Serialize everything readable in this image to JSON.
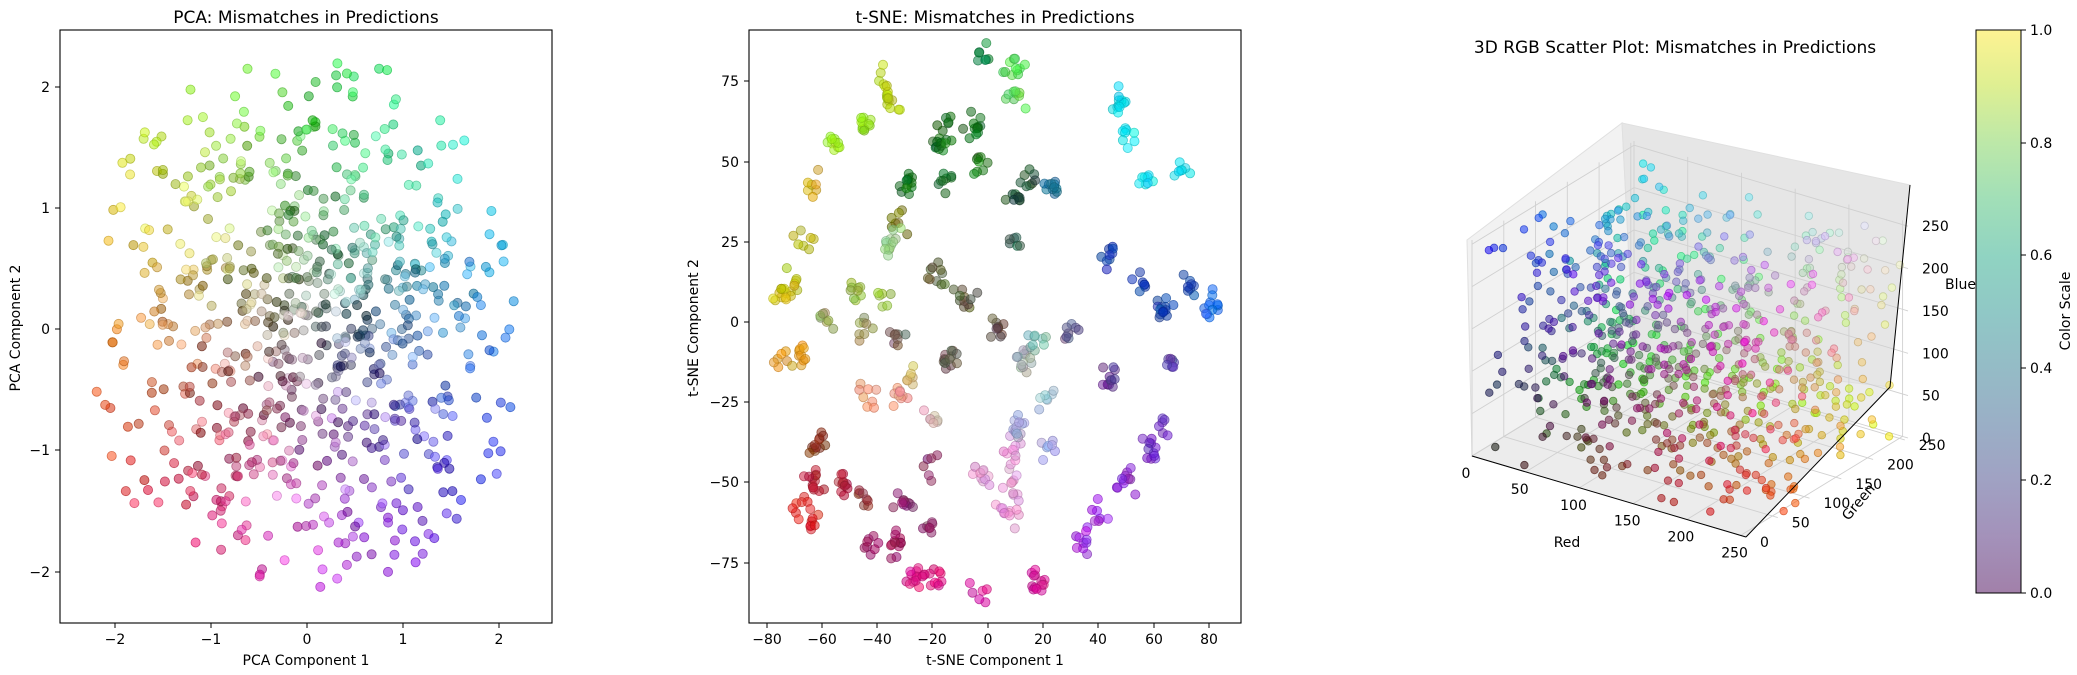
{
  "chart_data": [
    {
      "type": "scatter",
      "title": "PCA: Mismatches in Predictions",
      "xlabel": "PCA Component 1",
      "ylabel": "PCA Component 2",
      "xlim": [
        -2.55,
        2.55
      ],
      "ylim": [
        -2.45,
        2.45
      ],
      "xticks": [
        -2,
        -1,
        0,
        1,
        2
      ],
      "yticks": [
        -2,
        -1,
        0,
        1,
        2
      ],
      "xtick_labels": [
        "−2",
        "−1",
        "0",
        "1",
        "2"
      ],
      "ytick_labels": [
        "−2",
        "−1",
        "0",
        "1",
        "2"
      ],
      "n_points": 780,
      "seed": 11,
      "grid": false
    },
    {
      "type": "scatter",
      "title": "t-SNE: Mismatches in Predictions",
      "xlabel": "t-SNE Component 1",
      "ylabel": "t-SNE Component 2",
      "xlim": [
        -86,
        90
      ],
      "ylim": [
        -93,
        92
      ],
      "xticks": [
        -80,
        -60,
        -40,
        -20,
        0,
        20,
        40,
        60,
        80
      ],
      "yticks": [
        -75,
        -50,
        -25,
        0,
        25,
        50,
        75
      ],
      "xtick_labels": [
        "−80",
        "−60",
        "−40",
        "−20",
        "0",
        "20",
        "40",
        "60",
        "80"
      ],
      "ytick_labels": [
        "−75",
        "−50",
        "−25",
        "0",
        "25",
        "50",
        "75"
      ],
      "clusters": [
        [
          -2,
          83,
          0.0,
          0.5,
          0.25
        ],
        [
          9,
          80,
          0.3,
          0.85,
          0.3
        ],
        [
          9,
          72,
          0.3,
          0.85,
          0.3
        ],
        [
          -38,
          75,
          0.75,
          0.85,
          0.05
        ],
        [
          -35,
          70,
          0.75,
          0.85,
          0.05
        ],
        [
          -56,
          56,
          0.6,
          0.95,
          0.1
        ],
        [
          -45,
          62,
          0.6,
          0.95,
          0.1
        ],
        [
          -15,
          62,
          0.05,
          0.45,
          0.1
        ],
        [
          -18,
          56,
          0.05,
          0.45,
          0.1
        ],
        [
          -5,
          62,
          0.05,
          0.45,
          0.1
        ],
        [
          47,
          70,
          0.0,
          0.9,
          0.95
        ],
        [
          50,
          60,
          0.0,
          0.9,
          0.95
        ],
        [
          56,
          44,
          0.0,
          0.9,
          0.95
        ],
        [
          68,
          48,
          0.0,
          0.9,
          0.95
        ],
        [
          -3,
          50,
          0.05,
          0.45,
          0.1
        ],
        [
          -15,
          45,
          0.05,
          0.45,
          0.1
        ],
        [
          -30,
          45,
          0.05,
          0.45,
          0.1
        ],
        [
          9,
          38,
          0.1,
          0.3,
          0.2
        ],
        [
          13,
          45,
          0.1,
          0.3,
          0.2
        ],
        [
          22,
          43,
          0.05,
          0.45,
          0.6
        ],
        [
          -33,
          33,
          0.45,
          0.45,
          0.05
        ],
        [
          -63,
          42,
          0.85,
          0.65,
          0.05
        ],
        [
          -67,
          26,
          0.75,
          0.75,
          0.05
        ],
        [
          -35,
          25,
          0.6,
          0.8,
          0.5
        ],
        [
          -70,
          14,
          0.75,
          0.75,
          0.05
        ],
        [
          -48,
          10,
          0.6,
          0.75,
          0.2
        ],
        [
          -38,
          9,
          0.6,
          0.75,
          0.2
        ],
        [
          -19,
          15,
          0.35,
          0.35,
          0.2
        ],
        [
          -8,
          8,
          0.35,
          0.35,
          0.2
        ],
        [
          9,
          25,
          0.2,
          0.35,
          0.3
        ],
        [
          3,
          -1,
          0.4,
          0.3,
          0.3
        ],
        [
          -44,
          -2,
          0.6,
          0.6,
          0.3
        ],
        [
          -60,
          1,
          0.6,
          0.6,
          0.3
        ],
        [
          -75,
          9,
          0.85,
          0.75,
          0.05
        ],
        [
          -75,
          -11,
          0.9,
          0.6,
          0.05
        ],
        [
          -68,
          -9,
          0.9,
          0.6,
          0.05
        ],
        [
          -43,
          -22,
          0.95,
          0.55,
          0.4
        ],
        [
          -32,
          -22,
          0.95,
          0.6,
          0.5
        ],
        [
          -28,
          -17,
          0.85,
          0.75,
          0.4
        ],
        [
          -14,
          -11,
          0.4,
          0.35,
          0.3
        ],
        [
          -32,
          -5,
          0.45,
          0.35,
          0.3
        ],
        [
          -20,
          -29,
          0.85,
          0.7,
          0.7
        ],
        [
          12,
          -11,
          0.65,
          0.7,
          0.7
        ],
        [
          17,
          -6,
          0.5,
          0.75,
          0.7
        ],
        [
          20,
          -23,
          0.65,
          0.75,
          0.85
        ],
        [
          29,
          -2,
          0.35,
          0.35,
          0.55
        ],
        [
          42,
          22,
          0.05,
          0.25,
          0.7
        ],
        [
          55,
          13,
          0.05,
          0.25,
          0.7
        ],
        [
          62,
          5,
          0.05,
          0.25,
          0.7
        ],
        [
          72,
          13,
          0.05,
          0.25,
          0.7
        ],
        [
          80,
          6,
          0.05,
          0.4,
          0.95
        ],
        [
          66,
          -12,
          0.3,
          0.25,
          0.7
        ],
        [
          44,
          -17,
          0.4,
          0.2,
          0.6
        ],
        [
          22,
          -38,
          0.6,
          0.6,
          0.9
        ],
        [
          57,
          -38,
          0.45,
          0.15,
          0.8
        ],
        [
          63,
          -30,
          0.45,
          0.15,
          0.8
        ],
        [
          48,
          -48,
          0.55,
          0.1,
          0.85
        ],
        [
          40,
          -60,
          0.6,
          0.1,
          0.9
        ],
        [
          34,
          -67,
          0.6,
          0.1,
          0.9
        ],
        [
          -2,
          -48,
          0.9,
          0.6,
          0.85
        ],
        [
          8,
          -50,
          0.9,
          0.6,
          0.85
        ],
        [
          8,
          -40,
          0.9,
          0.6,
          0.85
        ],
        [
          -20,
          -45,
          0.55,
          0.15,
          0.4
        ],
        [
          -30,
          -55,
          0.55,
          0.15,
          0.4
        ],
        [
          -21,
          -64,
          0.55,
          0.15,
          0.4
        ],
        [
          -42,
          -68,
          0.65,
          0.05,
          0.35
        ],
        [
          -34,
          -68,
          0.65,
          0.05,
          0.35
        ],
        [
          -20,
          -78,
          0.9,
          0.05,
          0.5
        ],
        [
          -27,
          -78,
          0.9,
          0.05,
          0.5
        ],
        [
          -62,
          -48,
          0.75,
          0.1,
          0.2
        ],
        [
          -53,
          -50,
          0.75,
          0.1,
          0.2
        ],
        [
          -62,
          -38,
          0.55,
          0.2,
          0.1
        ],
        [
          -67,
          -56,
          0.9,
          0.1,
          0.1
        ],
        [
          -63,
          -62,
          0.9,
          0.1,
          0.1
        ],
        [
          -45,
          -55,
          0.6,
          0.2,
          0.2
        ],
        [
          -3,
          -85,
          0.85,
          0.05,
          0.6
        ],
        [
          16,
          -80,
          0.85,
          0.05,
          0.6
        ],
        [
          10,
          -32,
          0.65,
          0.65,
          0.85
        ],
        [
          6,
          -58,
          0.95,
          0.55,
          0.85
        ]
      ],
      "seed": 23,
      "grid": false
    },
    {
      "type": "scatter",
      "title": "3D RGB Scatter Plot: Mismatches in Predictions",
      "xlabel": "Red",
      "ylabel": "Green",
      "zlabel": "Blue",
      "xlim": [
        0,
        255
      ],
      "ylim": [
        0,
        255
      ],
      "zlim": [
        0,
        255
      ],
      "xticks": [
        0,
        50,
        100,
        150,
        200,
        250
      ],
      "yticks": [
        0,
        50,
        100,
        150,
        200,
        250
      ],
      "zticks": [
        0,
        50,
        100,
        150,
        200,
        250
      ],
      "xtick_labels": [
        "0",
        "50",
        "100",
        "150",
        "200",
        "250"
      ],
      "ytick_labels": [
        "0",
        "50",
        "100",
        "150",
        "200",
        "250"
      ],
      "ztick_labels": [
        "0",
        "50",
        "100",
        "150",
        "200",
        "250"
      ],
      "n_points": 780,
      "seed": 37,
      "grid": true
    }
  ],
  "colorbar": {
    "label": "Color Scale",
    "ticks": [
      0.0,
      0.2,
      0.4,
      0.6,
      0.8,
      1.0
    ],
    "tick_labels": [
      "0.0",
      "0.2",
      "0.4",
      "0.6",
      "0.8",
      "1.0"
    ],
    "colormap": "viridis",
    "alpha": 0.5
  },
  "marker_alpha": 0.55
}
